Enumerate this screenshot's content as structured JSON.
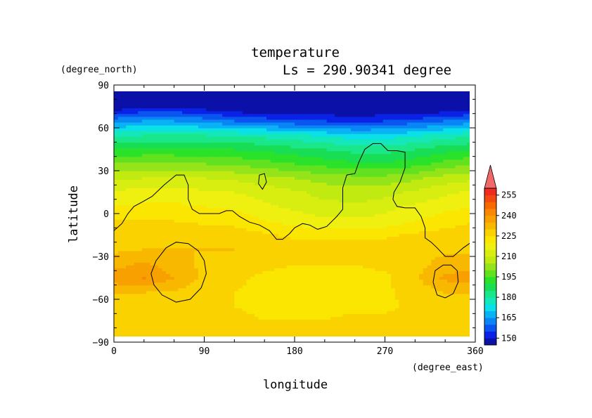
{
  "chart_data": {
    "type": "heatmap",
    "title": "temperature",
    "subtitle": "Ls = 290.90341 degree",
    "xlabel": "longitude",
    "ylabel": "latitude",
    "x_units": "(degree_east)",
    "y_units": "(degree_north)",
    "xlim": [
      0,
      360
    ],
    "ylim": [
      -90,
      90
    ],
    "x_ticks": [
      "0",
      "90",
      "180",
      "270",
      "360"
    ],
    "y_ticks": [
      "90",
      "60",
      "30",
      "0",
      "−30",
      "−60",
      "−90"
    ],
    "colorbar": {
      "levels": [
        145,
        150,
        155,
        160,
        165,
        170,
        175,
        180,
        185,
        190,
        195,
        200,
        205,
        210,
        215,
        220,
        225,
        230,
        235,
        240,
        245,
        250,
        255,
        260
      ],
      "tick_labels": [
        "150",
        "165",
        "180",
        "195",
        "210",
        "225",
        "240",
        "255"
      ],
      "colors": [
        "#0a10a8",
        "#0a22e6",
        "#0a55f0",
        "#0a85f5",
        "#08b2f5",
        "#0ae0e8",
        "#14e8b8",
        "#1ae68a",
        "#18de55",
        "#2ae22a",
        "#62e21e",
        "#95e41a",
        "#c0ea10",
        "#d8ee10",
        "#f0f010",
        "#fae600",
        "#fad200",
        "#f8b800",
        "#f8a000",
        "#f88800",
        "#f86a00",
        "#f24a10",
        "#f02c20"
      ],
      "extend_max_color": "#f06868"
    },
    "data_lat": [
      -85,
      -75,
      -65,
      -55,
      -45,
      -35,
      -25,
      -15,
      -5,
      5,
      15,
      25,
      35,
      45,
      55,
      65,
      75,
      85
    ],
    "data_lon": [
      0,
      30,
      60,
      90,
      120,
      150,
      180,
      210,
      240,
      270,
      300,
      330,
      360
    ],
    "values": [
      [
        228,
        228,
        228,
        228,
        228,
        228,
        228,
        228,
        228,
        228,
        228,
        228,
        228
      ],
      [
        228,
        228,
        228,
        227,
        226,
        225,
        225,
        225,
        226,
        226,
        227,
        228,
        228
      ],
      [
        228,
        228,
        228,
        227,
        225,
        224,
        224,
        224,
        224,
        224,
        226,
        228,
        228
      ],
      [
        230,
        230,
        229,
        227,
        225,
        224,
        224,
        224,
        224,
        224,
        227,
        230,
        230
      ],
      [
        238,
        240,
        235,
        229,
        226,
        224,
        224,
        224,
        224,
        224,
        229,
        236,
        238
      ],
      [
        233,
        236,
        232,
        229,
        228,
        226,
        225,
        225,
        225,
        226,
        228,
        232,
        233
      ],
      [
        229,
        230,
        230,
        230,
        230,
        229,
        228,
        228,
        228,
        228,
        229,
        229,
        229
      ],
      [
        227,
        228,
        228,
        228,
        228,
        226,
        224,
        223,
        223,
        224,
        226,
        227,
        227
      ],
      [
        225,
        225,
        225,
        224,
        223,
        220,
        218,
        216,
        216,
        217,
        220,
        223,
        225
      ],
      [
        220,
        221,
        221,
        220,
        219,
        216,
        214,
        212,
        211,
        213,
        216,
        218,
        220
      ],
      [
        216,
        217,
        217,
        216,
        215,
        213,
        211,
        208,
        207,
        208,
        211,
        214,
        216
      ],
      [
        209,
        210,
        210,
        210,
        209,
        207,
        205,
        203,
        202,
        202,
        204,
        207,
        209
      ],
      [
        200,
        201,
        201,
        200,
        199,
        197,
        195,
        193,
        191,
        191,
        193,
        197,
        200
      ],
      [
        190,
        191,
        191,
        191,
        190,
        189,
        187,
        185,
        183,
        183,
        185,
        188,
        190
      ],
      [
        179,
        180,
        180,
        180,
        179,
        178,
        176,
        174,
        172,
        172,
        174,
        177,
        179
      ],
      [
        163,
        165,
        165,
        163,
        160,
        158,
        156,
        155,
        154,
        155,
        157,
        160,
        163
      ],
      [
        146,
        149,
        149,
        147,
        144,
        143,
        143,
        143,
        143,
        143,
        143,
        144,
        146
      ],
      [
        143,
        143,
        143,
        143,
        143,
        143,
        143,
        143,
        143,
        143,
        143,
        143,
        143
      ]
    ],
    "contours": [
      [
        [
          0,
          -12
        ],
        [
          8,
          -7
        ],
        [
          14,
          0
        ],
        [
          20,
          5
        ],
        [
          28,
          8
        ],
        [
          38,
          12
        ],
        [
          50,
          20
        ],
        [
          62,
          27
        ],
        [
          70,
          27
        ],
        [
          74,
          20
        ],
        [
          74,
          10
        ],
        [
          78,
          3
        ],
        [
          85,
          0
        ],
        [
          95,
          0
        ],
        [
          105,
          0
        ],
        [
          112,
          2
        ],
        [
          118,
          2
        ],
        [
          125,
          -2
        ],
        [
          135,
          -6
        ],
        [
          145,
          -8
        ],
        [
          155,
          -12
        ],
        [
          162,
          -18
        ],
        [
          168,
          -18
        ],
        [
          175,
          -14
        ],
        [
          180,
          -10
        ],
        [
          188,
          -7
        ],
        [
          195,
          -8
        ],
        [
          203,
          -11
        ],
        [
          212,
          -9
        ],
        [
          222,
          -2
        ],
        [
          228,
          3
        ],
        [
          228,
          18
        ],
        [
          232,
          27
        ],
        [
          240,
          28
        ],
        [
          244,
          36
        ],
        [
          250,
          45
        ],
        [
          258,
          49
        ],
        [
          266,
          49
        ],
        [
          273,
          44
        ],
        [
          282,
          44
        ],
        [
          290,
          43
        ],
        [
          290,
          32
        ],
        [
          285,
          22
        ],
        [
          279,
          15
        ],
        [
          278,
          10
        ],
        [
          282,
          5
        ],
        [
          290,
          4
        ],
        [
          300,
          4
        ],
        [
          306,
          -2
        ],
        [
          310,
          -10
        ],
        [
          310,
          -17
        ],
        [
          316,
          -20
        ],
        [
          322,
          -24
        ],
        [
          330,
          -30
        ],
        [
          338,
          -30
        ],
        [
          348,
          -24
        ],
        [
          356,
          -20
        ]
      ],
      [
        [
          144,
          21
        ],
        [
          145,
          27
        ],
        [
          150,
          28
        ],
        [
          152,
          22
        ],
        [
          148,
          17
        ],
        [
          144,
          21
        ]
      ],
      [
        [
          37,
          -42
        ],
        [
          42,
          -33
        ],
        [
          52,
          -24
        ],
        [
          62,
          -20
        ],
        [
          74,
          -21
        ],
        [
          84,
          -26
        ],
        [
          90,
          -33
        ],
        [
          92,
          -42
        ],
        [
          87,
          -52
        ],
        [
          76,
          -60
        ],
        [
          62,
          -62
        ],
        [
          48,
          -57
        ],
        [
          40,
          -50
        ],
        [
          37,
          -42
        ]
      ],
      [
        [
          318,
          -48
        ],
        [
          320,
          -40
        ],
        [
          328,
          -36
        ],
        [
          336,
          -36
        ],
        [
          342,
          -40
        ],
        [
          343,
          -48
        ],
        [
          338,
          -56
        ],
        [
          330,
          -59
        ],
        [
          322,
          -57
        ],
        [
          318,
          -48
        ]
      ]
    ]
  }
}
